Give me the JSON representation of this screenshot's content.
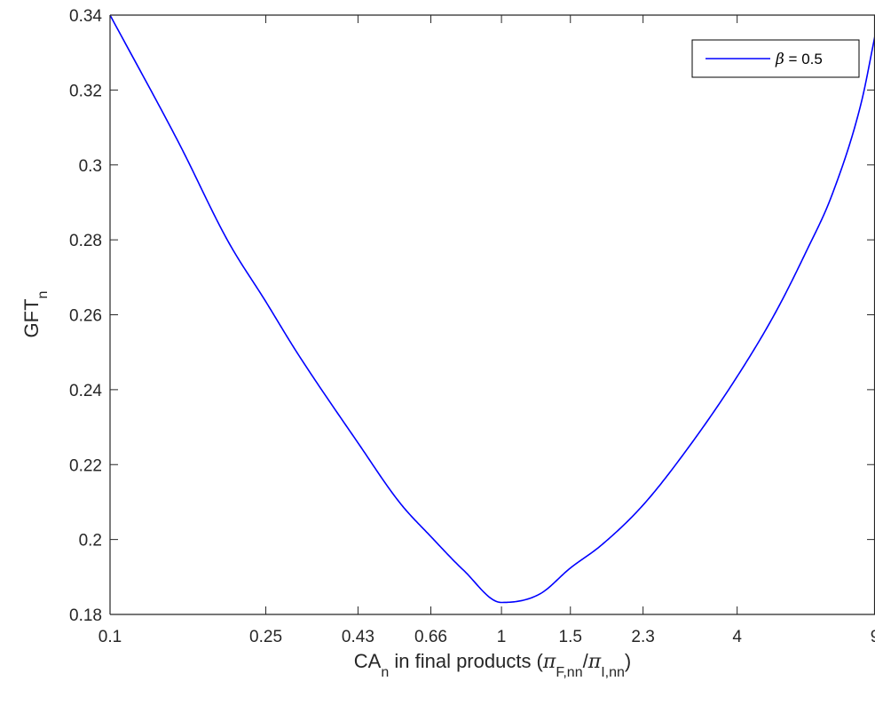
{
  "chart_data": {
    "type": "line",
    "title": "",
    "xlabel": {
      "main": "CA",
      "main_sub": "n",
      "rest": " in final products (",
      "sym1": "π",
      "sub1": "F,nn",
      "slash": "/",
      "sym2": "π",
      "sub2": "I,nn",
      "close": ")"
    },
    "ylabel": {
      "main": "GFT",
      "sub": "n"
    },
    "x_scale": "log",
    "xlim": [
      0.1,
      9
    ],
    "ylim": [
      0.18,
      0.34
    ],
    "x_ticks": [
      0.1,
      0.25,
      0.43,
      0.66,
      1,
      1.5,
      2.3,
      4,
      9
    ],
    "x_tick_labels": [
      "0.1",
      "0.25",
      "0.43",
      "0.66",
      "1",
      "1.5",
      "2.3",
      "4",
      "9"
    ],
    "y_ticks": [
      0.18,
      0.2,
      0.22,
      0.24,
      0.26,
      0.28,
      0.3,
      0.32,
      0.34
    ],
    "y_tick_labels": [
      "0.18",
      "0.2",
      "0.22",
      "0.24",
      "0.26",
      "0.28",
      "0.3",
      "0.32",
      "0.34"
    ],
    "grid": false,
    "legend_position": "top-right",
    "series": [
      {
        "name": "β = 0.5",
        "legend_symbol": "β",
        "legend_value": " = 0.5",
        "color": "#0000ff",
        "x": [
          0.1,
          0.15,
          0.2,
          0.25,
          0.3,
          0.43,
          0.55,
          0.66,
          0.8,
          1,
          1.25,
          1.5,
          1.8,
          2.3,
          3,
          4,
          5,
          6,
          7,
          8.3,
          9
        ],
        "y": [
          0.34,
          0.3058,
          0.2797,
          0.2635,
          0.25,
          0.2258,
          0.2098,
          0.2008,
          0.1918,
          0.1832,
          0.1854,
          0.1924,
          0.1985,
          0.2092,
          0.2245,
          0.2435,
          0.2604,
          0.2768,
          0.2922,
          0.3166,
          0.3345
        ]
      }
    ]
  }
}
